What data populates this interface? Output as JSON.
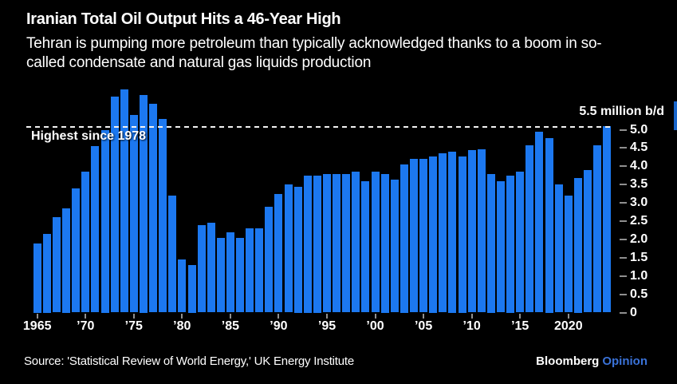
{
  "header": {
    "title": "Iranian Total Oil Output Hits a 46-Year High",
    "subtitle": "Tehran is pumping more petroleum than typically acknowledged thanks to a boom in so-called condensate and natural gas liquids production",
    "subtitle_lines": [
      "Tehran is pumping more petroleum than typically acknowledged thanks to a boom in so-",
      "called condensate and natural gas liquids production"
    ]
  },
  "chart_data": {
    "type": "bar",
    "title": "Iranian Total Oil Output Hits a 46-Year High",
    "unit": "million b/d",
    "years": [
      1965,
      1966,
      1967,
      1968,
      1969,
      1970,
      1971,
      1972,
      1973,
      1974,
      1975,
      1976,
      1977,
      1978,
      1979,
      1980,
      1981,
      1982,
      1983,
      1984,
      1985,
      1986,
      1987,
      1988,
      1989,
      1990,
      1991,
      1992,
      1993,
      1994,
      1995,
      1996,
      1997,
      1998,
      1999,
      2000,
      2001,
      2002,
      2003,
      2004,
      2005,
      2006,
      2007,
      2008,
      2009,
      2010,
      2011,
      2012,
      2013,
      2014,
      2015,
      2016,
      2017,
      2018,
      2019,
      2020,
      2021,
      2022,
      2023,
      2024
    ],
    "values": [
      1.9,
      2.15,
      2.6,
      2.85,
      3.4,
      3.85,
      4.55,
      5.0,
      5.9,
      6.1,
      5.4,
      5.95,
      5.7,
      5.3,
      3.2,
      1.45,
      1.3,
      2.4,
      2.45,
      2.05,
      2.2,
      2.05,
      2.3,
      2.3,
      2.9,
      3.25,
      3.5,
      3.45,
      3.75,
      3.75,
      3.78,
      3.79,
      3.78,
      3.86,
      3.6,
      3.85,
      3.8,
      3.63,
      4.05,
      4.2,
      4.2,
      4.28,
      4.35,
      4.4,
      4.28,
      4.45,
      4.47,
      3.8,
      3.6,
      3.75,
      3.85,
      4.57,
      4.94,
      4.77,
      3.5,
      3.2,
      3.68,
      3.9,
      4.57,
      5.1
    ],
    "ylim": [
      0,
      6.2
    ],
    "grid": false,
    "legend": "none",
    "y_axis": {
      "side": "right",
      "top_value": 5.5,
      "top_label": "5.5 million b/d",
      "ticks": [
        {
          "value": 5.0,
          "label": "5.0"
        },
        {
          "value": 4.5,
          "label": "4.5"
        },
        {
          "value": 4.0,
          "label": "4.0"
        },
        {
          "value": 3.5,
          "label": "3.5"
        },
        {
          "value": 3.0,
          "label": "3.0"
        },
        {
          "value": 2.5,
          "label": "2.5"
        },
        {
          "value": 2.0,
          "label": "2.0"
        },
        {
          "value": 1.5,
          "label": "1.5"
        },
        {
          "value": 1.0,
          "label": "1.0"
        },
        {
          "value": 0.5,
          "label": "0.5"
        },
        {
          "value": 0,
          "label": "0"
        }
      ]
    },
    "x_axis": {
      "ticks": [
        {
          "year": 1965,
          "label": "1965"
        },
        {
          "year": 1970,
          "label": "’70"
        },
        {
          "year": 1975,
          "label": "’75"
        },
        {
          "year": 1980,
          "label": "’80"
        },
        {
          "year": 1985,
          "label": "’85"
        },
        {
          "year": 1990,
          "label": "’90"
        },
        {
          "year": 1995,
          "label": "’95"
        },
        {
          "year": 2000,
          "label": "’00"
        },
        {
          "year": 2005,
          "label": "’05"
        },
        {
          "year": 2010,
          "label": "’10"
        },
        {
          "year": 2015,
          "label": "’15"
        },
        {
          "year": 2020,
          "label": "2020"
        }
      ]
    },
    "reference_line": {
      "value": 5.1,
      "label": "Highest since 1978",
      "style": "dashed"
    }
  },
  "footer": {
    "source": "Source: 'Statistical Review of World Energy,' UK Energy Institute",
    "brand": "Bloomberg",
    "brand_suffix": "Opinion"
  },
  "colors": {
    "background": "#000000",
    "bar": "#1c78f0",
    "text": "#ffffff",
    "tick": "#8f8f8f",
    "brand_accent": "#3a72d8"
  }
}
